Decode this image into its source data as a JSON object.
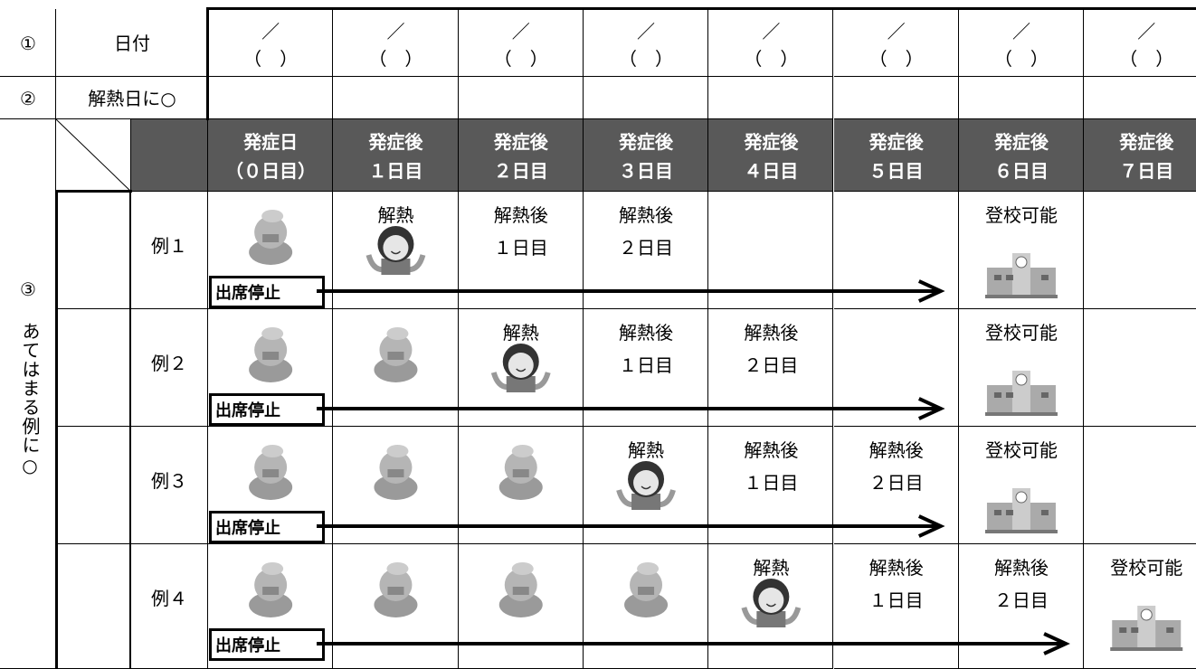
{
  "header_rows": [
    {
      "num": "①",
      "label": "日付"
    },
    {
      "num": "②",
      "label": "解熱日に○"
    }
  ],
  "date_cells": [
    {
      "slash": "／",
      "paren": "（　）"
    },
    {
      "slash": "／",
      "paren": "（　）"
    },
    {
      "slash": "／",
      "paren": "（　）"
    },
    {
      "slash": "／",
      "paren": "（　）"
    },
    {
      "slash": "／",
      "paren": "（　）"
    },
    {
      "slash": "／",
      "paren": "（　）"
    },
    {
      "slash": "／",
      "paren": "（　）"
    },
    {
      "slash": "／",
      "paren": "（　）"
    }
  ],
  "section": {
    "num": "③",
    "text": "あてはまる例に○"
  },
  "day_headers": [
    [
      "発症日",
      "（０日目）"
    ],
    [
      "発症後",
      "１日目"
    ],
    [
      "発症後",
      "２日目"
    ],
    [
      "発症後",
      "３日目"
    ],
    [
      "発症後",
      "４日目"
    ],
    [
      "発症後",
      "５日目"
    ],
    [
      "発症後",
      "６日目"
    ],
    [
      "発症後",
      "７日目"
    ]
  ],
  "examples": [
    {
      "label": "例１",
      "stop": "出席停止",
      "cells": [
        [],
        [
          "解熱"
        ],
        [
          "解熱後",
          "１日目"
        ],
        [
          "解熱後",
          "２日目"
        ],
        [],
        [],
        [
          "登校可能"
        ],
        []
      ]
    },
    {
      "label": "例２",
      "stop": "出席停止",
      "cells": [
        [],
        [],
        [
          "解熱"
        ],
        [
          "解熱後",
          "１日目"
        ],
        [
          "解熱後",
          "２日目"
        ],
        [],
        [
          "登校可能"
        ],
        []
      ]
    },
    {
      "label": "例３",
      "stop": "出席停止",
      "cells": [
        [],
        [],
        [],
        [
          "解熱"
        ],
        [
          "解熱後",
          "１日目"
        ],
        [
          "解熱後",
          "２日目"
        ],
        [
          "登校可能"
        ],
        []
      ]
    },
    {
      "label": "例４",
      "stop": "出席停止",
      "cells": [
        [],
        [],
        [],
        [],
        [
          "解熱"
        ],
        [
          "解熱後",
          "１日目"
        ],
        [
          "解熱後",
          "２日目"
        ],
        [
          "登校可能"
        ]
      ]
    }
  ]
}
